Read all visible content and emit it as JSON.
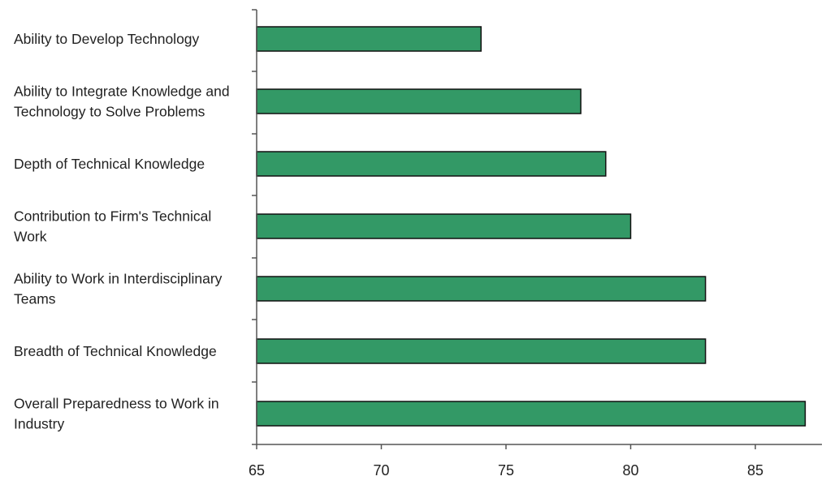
{
  "chart_data": {
    "type": "bar",
    "orientation": "horizontal",
    "title": "",
    "xlabel": "",
    "ylabel": "",
    "categories": [
      "Ability to Develop Technology",
      "Ability to Integrate Knowledge and Technology to Solve Problems",
      "Depth of Technical Knowledge",
      "Contribution to Firm's Technical Work",
      "Ability to Work in Interdisciplinary Teams",
      "Breadth of Technical Knowledge",
      "Overall Preparedness to Work in Industry"
    ],
    "category_lines": [
      [
        "Ability to Develop Technology"
      ],
      [
        "Ability to Integrate Knowledge and",
        "Technology to Solve Problems"
      ],
      [
        "Depth of Technical Knowledge"
      ],
      [
        "Contribution to Firm's Technical",
        "Work"
      ],
      [
        "Ability to Work in Interdisciplinary",
        "Teams"
      ],
      [
        "Breadth of Technical Knowledge"
      ],
      [
        "Overall Preparedness to Work in",
        "Industry"
      ]
    ],
    "values": [
      74,
      78,
      79,
      80,
      83,
      83,
      87
    ],
    "xlim": [
      65,
      87
    ],
    "xticks": [
      65,
      70,
      75,
      80,
      85
    ],
    "grid": false,
    "legend": "none",
    "bar_color": "#339966",
    "bar_edge_color": "#111111",
    "axis_color": "#555555"
  }
}
